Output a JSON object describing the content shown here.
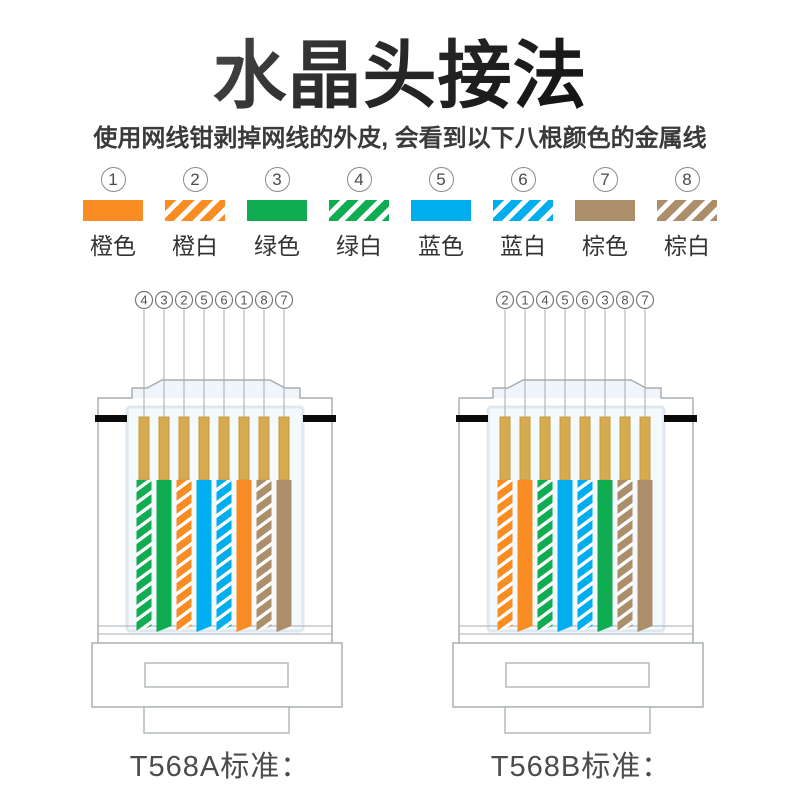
{
  "page": {
    "title": "水晶头接法",
    "subtitle": "使用网线钳剥掉网线的外皮, 会看到以下八根颜色的金属线"
  },
  "colors": {
    "orange": "#F98C23",
    "green": "#0FAC51",
    "blue": "#00AEF0",
    "brown": "#AC8E6B",
    "pin_gold": "#D6AB50",
    "pin_gold_edge": "#C49A42",
    "body_fill": "#F4F9FC",
    "body_stroke": "#DDE8F0",
    "latch_fill": "#EFF5FA",
    "housing_stroke": "#A8AFB4",
    "band_black": "#0A0A0A",
    "leader_gray": "#AAAAAA",
    "number_gray": "#555555",
    "caption_gray": "#4B4B4B"
  },
  "legend": {
    "items": [
      {
        "num": "1",
        "label": "橙色",
        "color_key": "orange",
        "striped": false
      },
      {
        "num": "2",
        "label": "橙白",
        "color_key": "orange",
        "striped": true
      },
      {
        "num": "3",
        "label": "绿色",
        "color_key": "green",
        "striped": false
      },
      {
        "num": "4",
        "label": "绿白",
        "color_key": "green",
        "striped": true
      },
      {
        "num": "5",
        "label": "蓝色",
        "color_key": "blue",
        "striped": false
      },
      {
        "num": "6",
        "label": "蓝白",
        "color_key": "blue",
        "striped": true
      },
      {
        "num": "7",
        "label": "棕色",
        "color_key": "brown",
        "striped": false
      },
      {
        "num": "8",
        "label": "棕白",
        "color_key": "brown",
        "striped": true
      }
    ]
  },
  "connectors": [
    {
      "id": "t568a",
      "caption": "T568A标准：",
      "pin_order": [
        "4",
        "3",
        "2",
        "5",
        "6",
        "1",
        "8",
        "7"
      ]
    },
    {
      "id": "t568b",
      "caption": "T568B标准：",
      "pin_order": [
        "2",
        "1",
        "4",
        "5",
        "6",
        "3",
        "8",
        "7"
      ]
    }
  ]
}
